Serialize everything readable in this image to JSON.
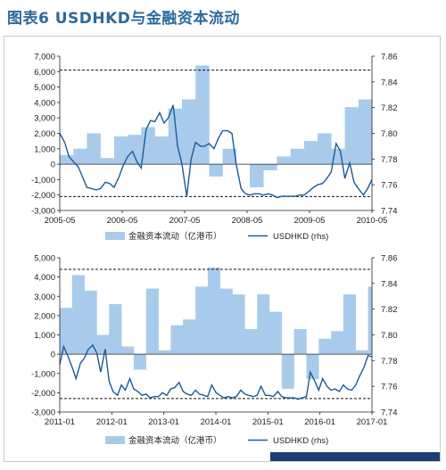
{
  "title": "图表6  USDHKD与金融资本流动",
  "colors": {
    "area": "#a9cbeb",
    "line": "#1a5b9a",
    "title": "#2c6a9c",
    "corner": "#1c3f73"
  },
  "chart_data": [
    {
      "type": "area",
      "title": "",
      "xlabel": "",
      "ylabel": "",
      "x_ticks": [
        "2005-05",
        "2006-05",
        "2007-05",
        "2008-05",
        "2009-05",
        "2010-05"
      ],
      "x_range": [
        2005.33,
        2011.08
      ],
      "y_ticks": [
        "7,000",
        "6,000",
        "5,000",
        "4,000",
        "3,000",
        "2,000",
        "1,000",
        "0",
        "-1,000",
        "-2,000",
        "-3,000"
      ],
      "ylim": [
        -3000,
        7000
      ],
      "y2_ticks": [
        "7.86",
        "7.84",
        "7.82",
        "7.80",
        "7.78",
        "7.76",
        "7.74"
      ],
      "y2lim": [
        7.74,
        7.86
      ],
      "ref_lines_left": [
        6100,
        -2100
      ],
      "grid": false,
      "legend_position": "bottom",
      "series": [
        {
          "name": "金融资本流动（亿港币）",
          "axis": "left",
          "style": "step-area",
          "points": [
            [
              2005.33,
              600
            ],
            [
              2005.58,
              1000
            ],
            [
              2005.83,
              2000
            ],
            [
              2006.08,
              400
            ],
            [
              2006.33,
              1800
            ],
            [
              2006.58,
              1900
            ],
            [
              2006.83,
              2400
            ],
            [
              2007.08,
              1800
            ],
            [
              2007.33,
              3600
            ],
            [
              2007.58,
              4200
            ],
            [
              2007.83,
              6400
            ],
            [
              2008.08,
              -800
            ],
            [
              2008.33,
              1000
            ],
            [
              2008.58,
              0
            ],
            [
              2008.83,
              -1500
            ],
            [
              2009.08,
              -400
            ],
            [
              2009.33,
              500
            ],
            [
              2009.58,
              1000
            ],
            [
              2009.83,
              1500
            ],
            [
              2010.08,
              2000
            ],
            [
              2010.33,
              1000
            ],
            [
              2010.58,
              3700
            ],
            [
              2010.83,
              4200
            ],
            [
              2011.08,
              4200
            ]
          ]
        },
        {
          "name": "USDHKD (rhs)",
          "axis": "right",
          "style": "line",
          "points": [
            [
              2005.33,
              7.8
            ],
            [
              2005.42,
              7.793
            ],
            [
              2005.5,
              7.782
            ],
            [
              2005.58,
              7.778
            ],
            [
              2005.67,
              7.774
            ],
            [
              2005.75,
              7.766
            ],
            [
              2005.83,
              7.758
            ],
            [
              2005.92,
              7.757
            ],
            [
              2006.0,
              7.756
            ],
            [
              2006.08,
              7.757
            ],
            [
              2006.17,
              7.762
            ],
            [
              2006.25,
              7.761
            ],
            [
              2006.33,
              7.758
            ],
            [
              2006.42,
              7.766
            ],
            [
              2006.5,
              7.775
            ],
            [
              2006.58,
              7.782
            ],
            [
              2006.67,
              7.786
            ],
            [
              2006.75,
              7.778
            ],
            [
              2006.83,
              7.773
            ],
            [
              2006.92,
              7.803
            ],
            [
              2007.0,
              7.81
            ],
            [
              2007.08,
              7.809
            ],
            [
              2007.17,
              7.816
            ],
            [
              2007.25,
              7.808
            ],
            [
              2007.33,
              7.812
            ],
            [
              2007.42,
              7.822
            ],
            [
              2007.5,
              7.79
            ],
            [
              2007.58,
              7.776
            ],
            [
              2007.67,
              7.751
            ],
            [
              2007.75,
              7.78
            ],
            [
              2007.83,
              7.793
            ],
            [
              2007.92,
              7.79
            ],
            [
              2008.0,
              7.79
            ],
            [
              2008.08,
              7.792
            ],
            [
              2008.17,
              7.788
            ],
            [
              2008.25,
              7.796
            ],
            [
              2008.33,
              7.802
            ],
            [
              2008.42,
              7.802
            ],
            [
              2008.5,
              7.8
            ],
            [
              2008.58,
              7.776
            ],
            [
              2008.67,
              7.757
            ],
            [
              2008.75,
              7.753
            ],
            [
              2008.83,
              7.752
            ],
            [
              2008.92,
              7.753
            ],
            [
              2009.0,
              7.753
            ],
            [
              2009.08,
              7.752
            ],
            [
              2009.17,
              7.753
            ],
            [
              2009.25,
              7.752
            ],
            [
              2009.33,
              7.75
            ],
            [
              2009.42,
              7.751
            ],
            [
              2009.5,
              7.751
            ],
            [
              2009.58,
              7.751
            ],
            [
              2009.67,
              7.751
            ],
            [
              2009.75,
              7.752
            ],
            [
              2009.83,
              7.752
            ],
            [
              2009.92,
              7.755
            ],
            [
              2010.0,
              7.758
            ],
            [
              2010.08,
              7.76
            ],
            [
              2010.17,
              7.761
            ],
            [
              2010.25,
              7.765
            ],
            [
              2010.33,
              7.77
            ],
            [
              2010.42,
              7.792
            ],
            [
              2010.5,
              7.786
            ],
            [
              2010.58,
              7.765
            ],
            [
              2010.67,
              7.777
            ],
            [
              2010.75,
              7.762
            ],
            [
              2010.83,
              7.757
            ],
            [
              2010.92,
              7.752
            ],
            [
              2011.0,
              7.757
            ],
            [
              2011.08,
              7.764
            ]
          ]
        }
      ]
    },
    {
      "type": "area",
      "title": "",
      "xlabel": "",
      "ylabel": "",
      "x_ticks": [
        "2011-01",
        "2012-01",
        "2013-01",
        "2014-01",
        "2015-01",
        "2016-01",
        "2017-01"
      ],
      "x_range": [
        2011.0,
        2017.33
      ],
      "y_ticks": [
        "5,000",
        "4,000",
        "3,000",
        "2,000",
        "1,000",
        "0",
        "-1,000",
        "-2,000",
        "-3,000"
      ],
      "ylim": [
        -3000,
        5000
      ],
      "y2_ticks": [
        "7.86",
        "7.84",
        "7.82",
        "7.80",
        "7.78",
        "7.76",
        "7.74"
      ],
      "y2lim": [
        7.74,
        7.86
      ],
      "ref_lines_left": [
        4400,
        -2300
      ],
      "grid": false,
      "legend_position": "bottom",
      "series": [
        {
          "name": "金融资本流动（亿港币）",
          "axis": "left",
          "style": "step-area",
          "points": [
            [
              2011.0,
              2400
            ],
            [
              2011.25,
              4100
            ],
            [
              2011.5,
              3300
            ],
            [
              2011.75,
              1000
            ],
            [
              2012.0,
              2600
            ],
            [
              2012.25,
              400
            ],
            [
              2012.5,
              -800
            ],
            [
              2012.75,
              3400
            ],
            [
              2013.0,
              200
            ],
            [
              2013.25,
              1500
            ],
            [
              2013.5,
              1800
            ],
            [
              2013.75,
              3500
            ],
            [
              2014.0,
              4500
            ],
            [
              2014.25,
              3400
            ],
            [
              2014.5,
              3100
            ],
            [
              2014.75,
              1300
            ],
            [
              2015.0,
              3100
            ],
            [
              2015.25,
              2200
            ],
            [
              2015.5,
              -1800
            ],
            [
              2015.75,
              1300
            ],
            [
              2016.0,
              -1300
            ],
            [
              2016.25,
              800
            ],
            [
              2016.5,
              1200
            ],
            [
              2016.75,
              3100
            ],
            [
              2017.0,
              200
            ],
            [
              2017.25,
              3500
            ],
            [
              2017.33,
              3500
            ]
          ]
        },
        {
          "name": "USDHKD (rhs)",
          "axis": "right",
          "style": "line",
          "points": [
            [
              2011.0,
              7.777
            ],
            [
              2011.08,
              7.791
            ],
            [
              2011.17,
              7.783
            ],
            [
              2011.25,
              7.775
            ],
            [
              2011.33,
              7.766
            ],
            [
              2011.42,
              7.778
            ],
            [
              2011.5,
              7.782
            ],
            [
              2011.58,
              7.789
            ],
            [
              2011.67,
              7.792
            ],
            [
              2011.75,
              7.786
            ],
            [
              2011.83,
              7.771
            ],
            [
              2011.92,
              7.789
            ],
            [
              2012.0,
              7.764
            ],
            [
              2012.08,
              7.756
            ],
            [
              2012.17,
              7.753
            ],
            [
              2012.25,
              7.761
            ],
            [
              2012.33,
              7.757
            ],
            [
              2012.42,
              7.766
            ],
            [
              2012.5,
              7.758
            ],
            [
              2012.58,
              7.756
            ],
            [
              2012.67,
              7.753
            ],
            [
              2012.75,
              7.754
            ],
            [
              2012.83,
              7.751
            ],
            [
              2012.92,
              7.752
            ],
            [
              2013.0,
              7.752
            ],
            [
              2013.08,
              7.755
            ],
            [
              2013.17,
              7.753
            ],
            [
              2013.25,
              7.758
            ],
            [
              2013.33,
              7.759
            ],
            [
              2013.42,
              7.763
            ],
            [
              2013.5,
              7.756
            ],
            [
              2013.58,
              7.754
            ],
            [
              2013.67,
              7.753
            ],
            [
              2013.75,
              7.757
            ],
            [
              2013.83,
              7.754
            ],
            [
              2013.92,
              7.753
            ],
            [
              2014.0,
              7.752
            ],
            [
              2014.08,
              7.761
            ],
            [
              2014.17,
              7.755
            ],
            [
              2014.25,
              7.753
            ],
            [
              2014.33,
              7.751
            ],
            [
              2014.42,
              7.752
            ],
            [
              2014.5,
              7.751
            ],
            [
              2014.58,
              7.752
            ],
            [
              2014.67,
              7.757
            ],
            [
              2014.75,
              7.754
            ],
            [
              2014.83,
              7.753
            ],
            [
              2014.92,
              7.752
            ],
            [
              2015.0,
              7.753
            ],
            [
              2015.08,
              7.76
            ],
            [
              2015.17,
              7.753
            ],
            [
              2015.25,
              7.753
            ],
            [
              2015.33,
              7.752
            ],
            [
              2015.42,
              7.756
            ],
            [
              2015.5,
              7.752
            ],
            [
              2015.58,
              7.751
            ],
            [
              2015.67,
              7.751
            ],
            [
              2015.75,
              7.751
            ],
            [
              2015.83,
              7.75
            ],
            [
              2015.92,
              7.751
            ],
            [
              2016.0,
              7.752
            ],
            [
              2016.08,
              7.771
            ],
            [
              2016.17,
              7.764
            ],
            [
              2016.25,
              7.757
            ],
            [
              2016.33,
              7.766
            ],
            [
              2016.42,
              7.76
            ],
            [
              2016.5,
              7.757
            ],
            [
              2016.58,
              7.758
            ],
            [
              2016.67,
              7.756
            ],
            [
              2016.75,
              7.761
            ],
            [
              2016.83,
              7.758
            ],
            [
              2016.92,
              7.757
            ],
            [
              2017.0,
              7.761
            ],
            [
              2017.08,
              7.768
            ],
            [
              2017.17,
              7.775
            ],
            [
              2017.25,
              7.784
            ],
            [
              2017.33,
              7.783
            ]
          ]
        }
      ]
    }
  ]
}
